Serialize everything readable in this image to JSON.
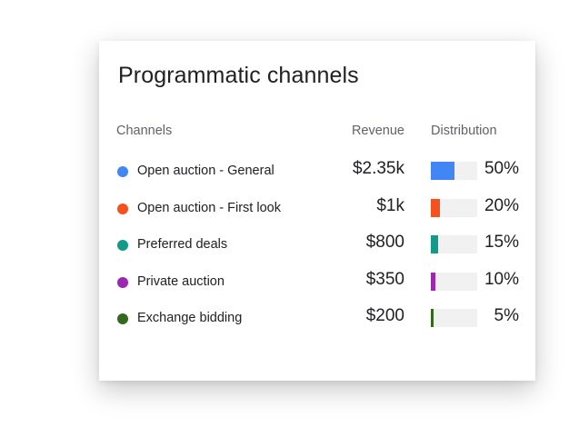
{
  "card": {
    "title": "Programmatic channels",
    "headers": {
      "channels": "Channels",
      "revenue": "Revenue",
      "distribution": "Distribution"
    },
    "rows": [
      {
        "channel": "Open auction - General",
        "revenue": "$2.35k",
        "distribution_label": "50%",
        "distribution": 0.5,
        "color": "#4285f4"
      },
      {
        "channel": "Open auction - First look",
        "revenue": "$1k",
        "distribution_label": "20%",
        "distribution": 0.2,
        "color": "#f4511e"
      },
      {
        "channel": "Preferred deals",
        "revenue": "$800",
        "distribution_label": "15%",
        "distribution": 0.15,
        "color": "#129a8b"
      },
      {
        "channel": "Private auction",
        "revenue": "$350",
        "distribution_label": "10%",
        "distribution": 0.1,
        "color": "#9c27b0"
      },
      {
        "channel": "Exchange bidding",
        "revenue": "$200",
        "distribution_label": "5%",
        "distribution": 0.05,
        "color": "#33691e"
      }
    ]
  }
}
